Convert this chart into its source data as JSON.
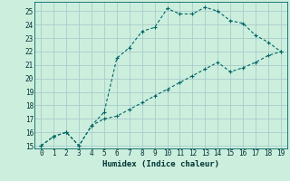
{
  "title": "",
  "xlabel": "Humidex (Indice chaleur)",
  "bg_color": "#cceedd",
  "line_color": "#006666",
  "grid_color": "#aacccc",
  "line1_x": [
    0,
    1,
    2,
    3,
    4,
    5,
    6,
    7,
    8,
    9,
    10,
    11,
    12,
    13,
    14,
    15,
    16,
    17,
    18,
    19
  ],
  "line1_y": [
    15.0,
    15.7,
    16.0,
    15.0,
    16.5,
    17.5,
    21.5,
    22.3,
    23.5,
    23.8,
    25.2,
    24.8,
    24.8,
    25.3,
    25.0,
    24.3,
    24.1,
    23.2,
    22.7,
    22.0
  ],
  "line2_x": [
    0,
    1,
    2,
    3,
    4,
    5,
    6,
    7,
    8,
    9,
    10,
    11,
    12,
    13,
    14,
    15,
    16,
    17,
    18,
    19
  ],
  "line2_y": [
    15.0,
    15.7,
    16.0,
    15.0,
    16.5,
    17.0,
    17.2,
    17.7,
    18.2,
    18.7,
    19.2,
    19.7,
    20.2,
    20.7,
    21.2,
    20.5,
    20.8,
    21.2,
    21.7,
    22.0
  ],
  "xlim": [
    -0.5,
    19.5
  ],
  "ylim": [
    14.8,
    25.7
  ],
  "xticks": [
    0,
    1,
    2,
    3,
    4,
    5,
    6,
    7,
    8,
    9,
    10,
    11,
    12,
    13,
    14,
    15,
    16,
    17,
    18,
    19
  ],
  "yticks": [
    15,
    16,
    17,
    18,
    19,
    20,
    21,
    22,
    23,
    24,
    25
  ]
}
